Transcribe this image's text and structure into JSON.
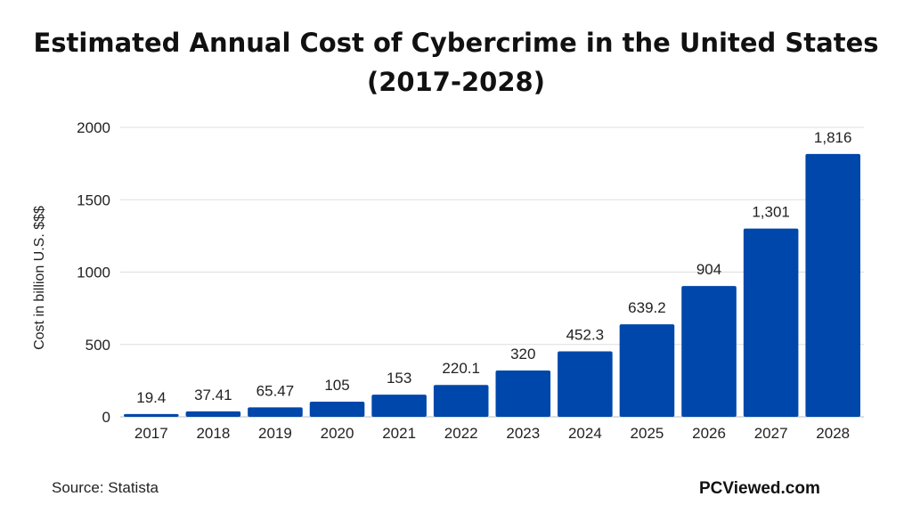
{
  "chart_data": {
    "type": "bar",
    "title_line1": "Estimated Annual Cost of Cybercrime in the United States",
    "title_line2": "(2017-2028)",
    "xlabel": "",
    "ylabel": "Cost in billion U.S. $$$",
    "categories": [
      "2017",
      "2018",
      "2019",
      "2020",
      "2021",
      "2022",
      "2023",
      "2024",
      "2025",
      "2026",
      "2027",
      "2028"
    ],
    "values": [
      19.4,
      37.41,
      65.47,
      105,
      153,
      220.1,
      320,
      452.3,
      639.2,
      904,
      1301,
      1816
    ],
    "data_labels": [
      "19.4",
      "37.41",
      "65.47",
      "105",
      "153",
      "220.1",
      "320",
      "452.3",
      "639.2",
      "904",
      "1,301",
      "1,816"
    ],
    "ylim": [
      0,
      2000
    ],
    "yticks": [
      0,
      500,
      1000,
      1500,
      2000
    ],
    "grid": true,
    "bar_color": "#0047ab"
  },
  "footer": {
    "source": "Source:  Statista",
    "brand": "PCViewed.com"
  }
}
